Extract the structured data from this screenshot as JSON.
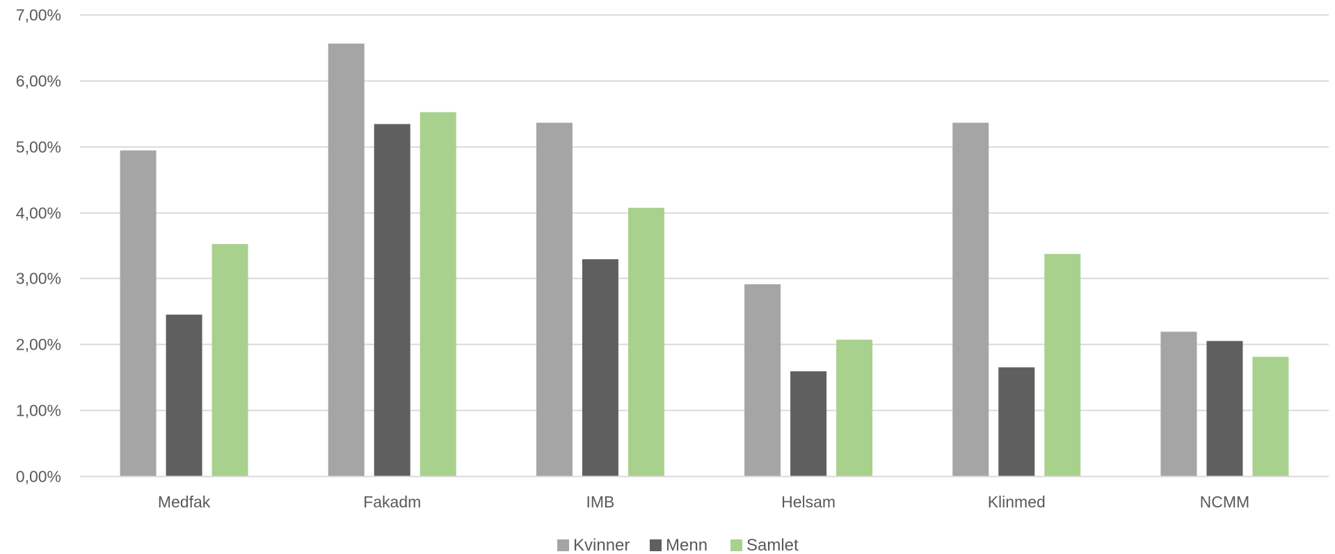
{
  "chart_data": {
    "type": "bar",
    "title": "",
    "xlabel": "",
    "ylabel": "",
    "categories": [
      "Medfak",
      "Fakadm",
      "IMB",
      "Helsam",
      "Klinmed",
      "NCMM"
    ],
    "series": [
      {
        "name": "Kvinner",
        "color": "#a5a5a5",
        "values": [
          4.94,
          6.56,
          5.36,
          2.91,
          5.36,
          2.19
        ]
      },
      {
        "name": "Menn",
        "color": "#5f5f5f",
        "values": [
          2.45,
          5.34,
          3.29,
          1.59,
          1.65,
          2.05
        ]
      },
      {
        "name": "Samlet",
        "color": "#a9d18e",
        "values": [
          3.52,
          5.52,
          4.07,
          2.07,
          3.37,
          1.81
        ]
      }
    ],
    "ylim": [
      0,
      7
    ],
    "y_ticks": [
      {
        "value": 0,
        "label": "0,00%"
      },
      {
        "value": 1,
        "label": "1,00%"
      },
      {
        "value": 2,
        "label": "2,00%"
      },
      {
        "value": 3,
        "label": "3,00%"
      },
      {
        "value": 4,
        "label": "4,00%"
      },
      {
        "value": 5,
        "label": "5,00%"
      },
      {
        "value": 6,
        "label": "6,00%"
      },
      {
        "value": 7,
        "label": "7,00%"
      }
    ],
    "grid": true,
    "legend_position": "bottom-center",
    "gridline_color": "#d9d9d9",
    "text_color": "#595959"
  }
}
